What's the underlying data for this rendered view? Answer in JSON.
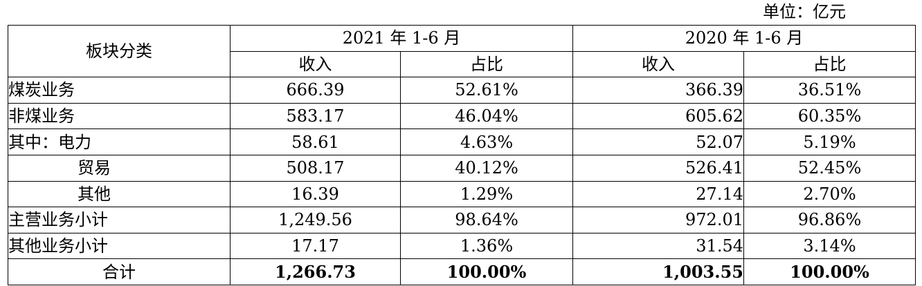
{
  "unit": "单位：亿元",
  "header": {
    "category": "板块分类",
    "period1": "2021 年 1-6 月",
    "period2": "2020 年 1-6 月",
    "income": "收入",
    "share": "占比"
  },
  "rows": [
    {
      "label": "煤炭业务",
      "c1": "666.39",
      "c2": "52.61%",
      "c3": "366.39",
      "c4": "36.51%"
    },
    {
      "label": "非煤业务",
      "c1": "583.17",
      "c2": "46.04%",
      "c3": "605.62",
      "c4": "60.35%"
    },
    {
      "label": "其中：电力",
      "c1": "58.61",
      "c2": "4.63%",
      "c3": "52.07",
      "c4": "5.19%"
    },
    {
      "label": "贸易",
      "c1": "508.17",
      "c2": "40.12%",
      "c3": "526.41",
      "c4": "52.45%"
    },
    {
      "label": "其他",
      "c1": "16.39",
      "c2": "1.29%",
      "c3": "27.14",
      "c4": "2.70%"
    },
    {
      "label": "主营业务小计",
      "c1": "1,249.56",
      "c2": "98.64%",
      "c3": "972.01",
      "c4": "96.86%"
    },
    {
      "label": "其他业务小计",
      "c1": "17.17",
      "c2": "1.36%",
      "c3": "31.54",
      "c4": "3.14%"
    },
    {
      "label": "合计",
      "c1": "1,266.73",
      "c2": "100.00%",
      "c3": "1,003.55",
      "c4": "100.00%"
    }
  ]
}
